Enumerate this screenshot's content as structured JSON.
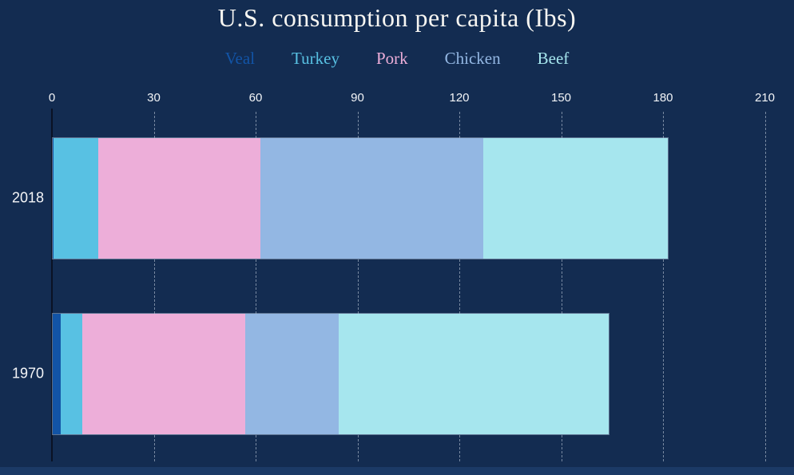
{
  "window": {
    "background": "#132c51",
    "bottom_strip_color": "#1b3a66"
  },
  "colors": {
    "title_text": "#f7f6f2",
    "tick_text": "#f2f4f7",
    "category_text": "#f5f6f8",
    "gridline": "#9ba8bc",
    "axis_line": "#0a1224",
    "bar_outline": "#adc0d8"
  },
  "chart_data": {
    "type": "bar",
    "orientation": "horizontal",
    "stacked": true,
    "title": "U.S. consumption per capita (Ibs)",
    "categories": [
      "2018",
      "1970"
    ],
    "series": [
      {
        "name": "Veal",
        "color": "#1254a6",
        "values": [
          0.3,
          2.4
        ]
      },
      {
        "name": "Turkey",
        "color": "#58c1e3",
        "values": [
          13.0,
          6.4
        ]
      },
      {
        "name": "Pork",
        "color": "#edaed9",
        "values": [
          47.8,
          48.0
        ]
      },
      {
        "name": "Chicken",
        "color": "#93b7e3",
        "values": [
          65.7,
          27.4
        ]
      },
      {
        "name": "Beef",
        "color": "#a6e6ee",
        "values": [
          54.4,
          79.6
        ]
      }
    ],
    "totals": [
      181.2,
      163.8
    ],
    "x_ticks": [
      0,
      30,
      60,
      90,
      120,
      150,
      180,
      210
    ],
    "xlim": [
      0,
      218.6
    ],
    "xlabel": "",
    "ylabel": "",
    "grid": "vertical-dashed",
    "legend_position": "top",
    "legend_style": "colored-text"
  }
}
